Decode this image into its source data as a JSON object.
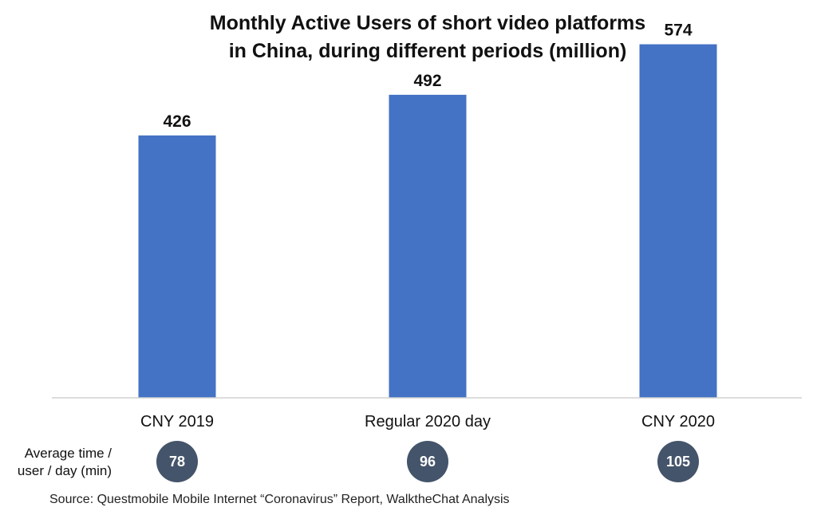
{
  "chart_data": {
    "type": "bar",
    "title_lines": [
      "Monthly Active Users of short video platforms",
      "in China, during different periods (million)"
    ],
    "categories": [
      "CNY 2019",
      "Regular 2020 day",
      "CNY 2020"
    ],
    "values": [
      426,
      492,
      574
    ],
    "data_labels": [
      "426",
      "492",
      "574"
    ],
    "ylim": [
      0,
      620
    ],
    "grid": false,
    "xlabel": "",
    "ylabel": "",
    "bar_color": "#4472C4",
    "secondary_row": {
      "label_lines": [
        "Average time /",
        "user / day (min)"
      ],
      "values": [
        "78",
        "96",
        "105"
      ],
      "badge_color": "#44546A"
    }
  },
  "source": "Source: Questmobile Mobile Internet “Coronavirus” Report, WalktheChat Analysis"
}
